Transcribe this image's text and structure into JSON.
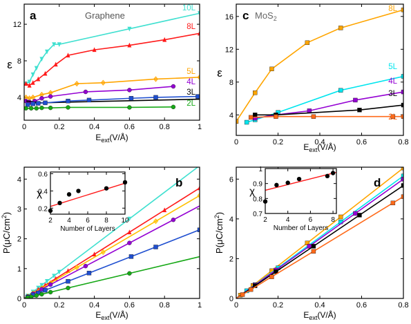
{
  "chart_data": [
    {
      "panel": "a",
      "type": "line",
      "title": "Graphene",
      "xlabel": "E_ext(V/Å)",
      "ylabel": "ε",
      "xlim": [
        0,
        1
      ],
      "ylim": [
        1.5,
        14.2
      ],
      "xticks": [
        "0",
        "0.2",
        "0.4",
        "0.6",
        "0.8",
        "1"
      ],
      "xtick_values": [
        0,
        0.2,
        0.4,
        0.6,
        0.8,
        1
      ],
      "yticks": [
        "4",
        "8",
        "12"
      ],
      "ytick_values": [
        4,
        8,
        12
      ],
      "legend_placement": "labels at right end of curves",
      "series": [
        {
          "name": "10L",
          "color": "#40E0D0",
          "marker": "triangle-down",
          "x": [
            0.01,
            0.03,
            0.05,
            0.07,
            0.1,
            0.13,
            0.17,
            0.2,
            0.6,
            1.0
          ],
          "y": [
            5.5,
            5.7,
            6.5,
            7.2,
            8.2,
            9.0,
            9.8,
            9.8,
            11.5,
            13.2
          ]
        },
        {
          "name": "8L",
          "color": "#ff1a1a",
          "marker": "triangle-up",
          "x": [
            0.01,
            0.03,
            0.05,
            0.08,
            0.12,
            0.18,
            0.25,
            0.4,
            0.6,
            0.8,
            1.0
          ],
          "y": [
            5.5,
            5.3,
            5.6,
            6.0,
            6.6,
            7.6,
            8.6,
            9.2,
            9.7,
            10.3,
            11.0
          ]
        },
        {
          "name": "5L",
          "color": "#FFA500",
          "marker": "diamond",
          "x": [
            0.01,
            0.03,
            0.05,
            0.1,
            0.15,
            0.3,
            0.45,
            0.75,
            1.0
          ],
          "y": [
            4.0,
            3.9,
            4.0,
            4.3,
            4.5,
            5.5,
            5.6,
            6.0,
            6.2
          ]
        },
        {
          "name": "4L",
          "color": "#9400D3",
          "marker": "circle",
          "x": [
            0.01,
            0.03,
            0.06,
            0.1,
            0.15,
            0.35,
            0.6,
            0.85
          ],
          "y": [
            3.6,
            3.5,
            3.6,
            3.9,
            4.1,
            4.6,
            4.8,
            5.2
          ]
        },
        {
          "name": "3L",
          "color": "#000000",
          "marker": "none",
          "x": [
            0.01,
            0.1,
            0.3,
            1.0
          ],
          "y": [
            3.6,
            3.4,
            3.5,
            3.8
          ]
        },
        {
          "name": "",
          "color": "#1F4FD0",
          "marker": "square",
          "x": [
            0.02,
            0.05,
            0.08,
            0.12,
            0.25,
            0.37,
            0.61,
            0.75,
            0.99
          ],
          "y": [
            3.2,
            3.3,
            3.35,
            3.4,
            3.6,
            3.7,
            3.9,
            4.0,
            4.1
          ]
        },
        {
          "name": "2L",
          "color": "#16A816",
          "marker": "circle",
          "x": [
            0.01,
            0.04,
            0.07,
            0.1,
            0.15,
            0.25,
            0.6,
            0.85
          ],
          "y": [
            2.8,
            2.8,
            2.8,
            2.85,
            2.85,
            2.9,
            2.9,
            2.95
          ]
        }
      ]
    },
    {
      "panel": "c",
      "type": "line",
      "title": "MoS₂",
      "xlabel": "E_ext(V/Å)",
      "ylabel": "ε",
      "xlim": [
        0,
        0.8
      ],
      "ylim": [
        1.5,
        17.5
      ],
      "xticks": [
        "0",
        "0.2",
        "0.4",
        "0.6",
        "0.8"
      ],
      "xtick_values": [
        0,
        0.2,
        0.4,
        0.6,
        0.8
      ],
      "yticks": [
        "4",
        "8",
        "12",
        "16"
      ],
      "ytick_values": [
        4,
        8,
        12,
        16
      ],
      "legend_placement": "labels at right end of curves",
      "series": [
        {
          "name": "8L",
          "color": "#FFA500",
          "marker": "square",
          "x": [
            0.0,
            0.09,
            0.17,
            0.34,
            0.5,
            0.8
          ],
          "y": [
            3.2,
            6.7,
            9.6,
            12.8,
            14.6,
            16.8
          ]
        },
        {
          "name": "5L",
          "color": "#00E5EE",
          "marker": "square",
          "x": [
            0.05,
            0.09,
            0.2,
            0.5,
            0.8
          ],
          "y": [
            3.1,
            3.4,
            4.3,
            7.0,
            8.7
          ]
        },
        {
          "name": "4L",
          "color": "#9400D3",
          "marker": "square",
          "x": [
            0.09,
            0.19,
            0.35,
            0.57,
            0.8
          ],
          "y": [
            3.6,
            4.0,
            4.5,
            5.8,
            6.8
          ]
        },
        {
          "name": "3L",
          "color": "#000000",
          "marker": "square",
          "x": [
            0.09,
            0.19,
            0.59,
            0.8
          ],
          "y": [
            4.0,
            4.0,
            4.6,
            5.2
          ]
        },
        {
          "name": "2L",
          "color": "#FF6A1A",
          "marker": "square",
          "x": [
            0.07,
            0.19,
            0.37,
            0.75,
            0.8
          ],
          "y": [
            3.7,
            3.8,
            3.8,
            3.8,
            3.8
          ]
        }
      ]
    },
    {
      "panel": "b",
      "type": "line",
      "xlabel": "E_ext(V/Å)",
      "ylabel": "P(μC/cm²)",
      "xlim": [
        0,
        1
      ],
      "ylim": [
        0,
        4.4
      ],
      "xticks": [
        "0",
        "0.2",
        "0.4",
        "0.6",
        "0.8",
        "1"
      ],
      "xtick_values": [
        0,
        0.2,
        0.4,
        0.6,
        0.8,
        1
      ],
      "yticks": [
        "0",
        "1",
        "2",
        "3",
        "4"
      ],
      "ytick_values": [
        0,
        1,
        2,
        3,
        4
      ],
      "series": [
        {
          "name": "10L",
          "color": "#40E0D0",
          "marker": "triangle-down",
          "slope": 4.45,
          "x": [
            0.02,
            0.05,
            0.08,
            0.1,
            0.13,
            0.17,
            0.2,
            0.6
          ]
        },
        {
          "name": "8L",
          "color": "#ff1a1a",
          "marker": "triangle-up",
          "slope": 3.7,
          "x": [
            0.02,
            0.05,
            0.08,
            0.12,
            0.18,
            0.25,
            0.4,
            0.6,
            0.8,
            1.0
          ]
        },
        {
          "name": "5L",
          "color": "#FFC000",
          "marker": "diamond",
          "slope": 3.45,
          "x": [
            0.02,
            0.05,
            0.1,
            0.15,
            0.3,
            0.45,
            0.75,
            1.0
          ]
        },
        {
          "name": "4L",
          "color": "#9400D3",
          "marker": "circle",
          "slope": 3.1,
          "x": [
            0.02,
            0.05,
            0.1,
            0.15,
            0.35,
            0.6,
            0.85
          ]
        },
        {
          "name": "3L",
          "color": "#1F4FD0",
          "marker": "square",
          "slope": 2.3,
          "x": [
            0.02,
            0.05,
            0.08,
            0.12,
            0.25,
            0.37,
            0.61,
            0.75,
            1.0
          ]
        },
        {
          "name": "2L",
          "color": "#16A816",
          "marker": "circle",
          "slope": 1.4,
          "x": [
            0.02,
            0.04,
            0.07,
            0.1,
            0.15,
            0.25,
            0.6
          ]
        }
      ],
      "inset": {
        "xlabel": "Number of Layers",
        "ylabel": "χ",
        "xlim": [
          2,
          10
        ],
        "ylim": [
          0.13,
          0.62
        ],
        "xticks": [
          "2",
          "4",
          "6",
          "8",
          "10"
        ],
        "xtick_values": [
          2,
          4,
          6,
          8,
          10
        ],
        "yticks": [
          "0.2",
          "0.4",
          "0.6"
        ],
        "ytick_values": [
          0.2,
          0.4,
          0.6
        ],
        "points": {
          "x": [
            2,
            3,
            4,
            5,
            8,
            10
          ],
          "y": [
            0.17,
            0.26,
            0.36,
            0.4,
            0.43,
            0.5
          ]
        },
        "fit": {
          "x": [
            2,
            10
          ],
          "y": [
            0.22,
            0.49
          ],
          "color": "#ff1a1a"
        }
      }
    },
    {
      "panel": "d",
      "type": "line",
      "xlabel": "E_ext(V/Å)",
      "ylabel": "P(μC/cm²)",
      "xlim": [
        0,
        0.8
      ],
      "ylim": [
        0,
        6.6
      ],
      "xticks": [
        "0",
        "0.2",
        "0.4",
        "0.6",
        "0.8"
      ],
      "xtick_values": [
        0,
        0.2,
        0.4,
        0.6,
        0.8
      ],
      "yticks": [
        "0",
        "2",
        "4",
        "6"
      ],
      "ytick_values": [
        0,
        2,
        4,
        6
      ],
      "series": [
        {
          "name": "8L",
          "color": "#FFA500",
          "marker": "square",
          "slope": 8.2,
          "x": [
            0.02,
            0.08,
            0.17,
            0.34,
            0.5,
            0.8
          ]
        },
        {
          "name": "5L",
          "color": "#00E5EE",
          "marker": "square",
          "slope": 7.7,
          "x": [
            0.05,
            0.09,
            0.2,
            0.5,
            0.8
          ]
        },
        {
          "name": "4L",
          "color": "#9400D3",
          "marker": "square",
          "slope": 7.5,
          "x": [
            0.09,
            0.19,
            0.35,
            0.57,
            0.8
          ]
        },
        {
          "name": "3L",
          "color": "#000000",
          "marker": "square",
          "slope": 7.1,
          "x": [
            0.09,
            0.19,
            0.37,
            0.59,
            0.8
          ]
        },
        {
          "name": "2L",
          "color": "#FF6A1A",
          "marker": "square",
          "slope": 6.4,
          "x": [
            0.03,
            0.07,
            0.17,
            0.37,
            0.75,
            0.8
          ]
        }
      ],
      "inset": {
        "xlabel": "Number of Layers",
        "ylabel": "χ",
        "xlim": [
          2,
          8.3
        ],
        "ylim": [
          0.7,
          1.0
        ],
        "xticks": [
          "2",
          "4",
          "6",
          "8"
        ],
        "xtick_values": [
          2,
          4,
          6,
          8
        ],
        "yticks": [
          "0.7",
          "0.8",
          "0.9",
          "1"
        ],
        "ytick_values": [
          0.7,
          0.8,
          0.9,
          1.0
        ],
        "points": {
          "x": [
            2,
            3,
            4,
            5,
            7.5,
            8
          ],
          "y": [
            0.78,
            0.89,
            0.905,
            0.93,
            0.95,
            0.97
          ]
        },
        "fit": {
          "x": [
            2,
            8.3
          ],
          "y": [
            0.855,
            0.975
          ],
          "color": "#ff1a1a"
        }
      }
    }
  ]
}
